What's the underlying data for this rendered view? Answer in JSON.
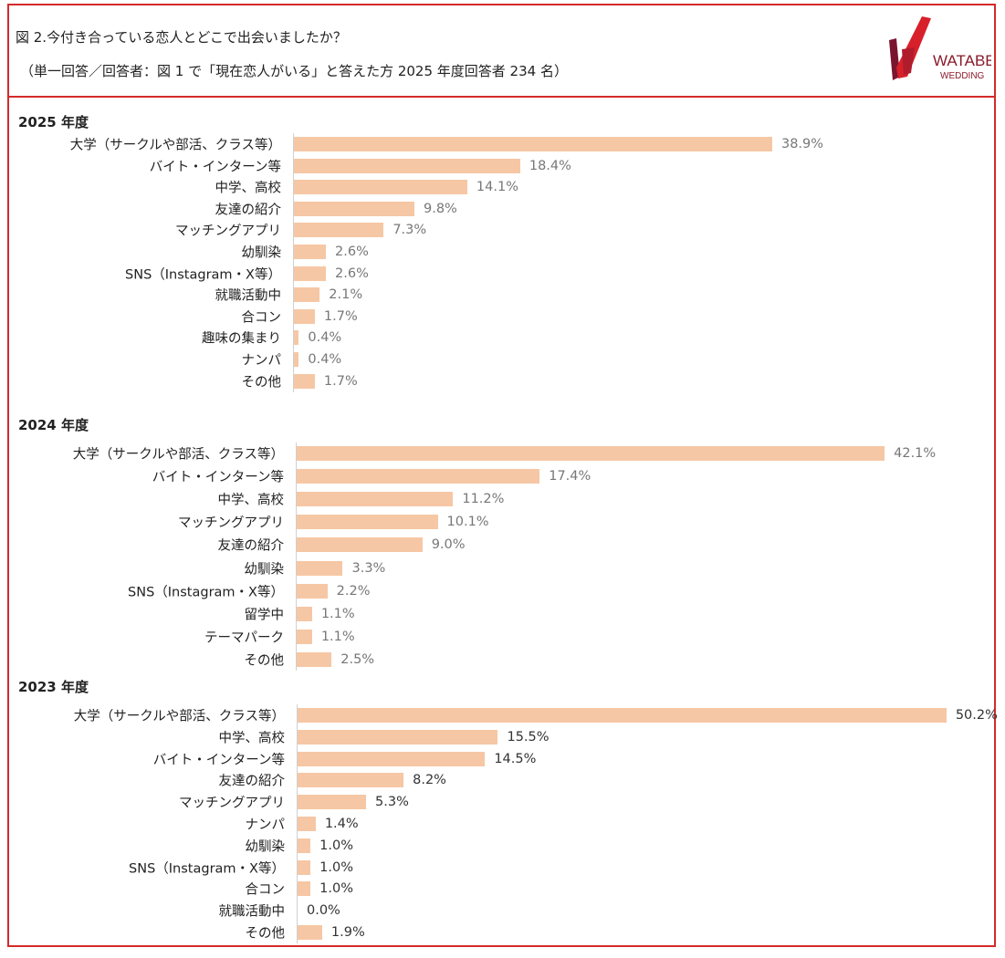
{
  "header": {
    "title": "図 2.今付き合っている恋人とどこで出会いましたか？",
    "subtitle": "（単一回答／回答者：図 1 で「現在恋人がいる」と答えた方 2025 年度回答者 234 名）",
    "logo_text": "WATABE WEDDING"
  },
  "colors": {
    "bar": "#f6c7a4",
    "frame": "#d42a2a"
  },
  "chart_data": [
    {
      "type": "bar",
      "orientation": "horizontal",
      "title": "2025 年度",
      "unit": "%",
      "categories": [
        "大学（サークルや部活、クラス等）",
        "バイト・インターン等",
        "中学、高校",
        "友達の紹介",
        "マッチングアプリ",
        "幼馴染",
        "SNS（Instagram・X等）",
        "就職活動中",
        "合コン",
        "趣味の集まり",
        "ナンパ",
        "その他"
      ],
      "values": [
        38.9,
        18.4,
        14.1,
        9.8,
        7.3,
        2.6,
        2.6,
        2.1,
        1.7,
        0.4,
        0.4,
        1.7
      ],
      "value_labels": [
        "38.9%",
        "18.4%",
        "14.1%",
        "9.8%",
        "7.3%",
        "2.6%",
        "2.6%",
        "2.1%",
        "1.7%",
        "0.4%",
        "0.4%",
        "1.7%"
      ]
    },
    {
      "type": "bar",
      "orientation": "horizontal",
      "title": "2024 年度",
      "unit": "%",
      "categories": [
        "大学（サークルや部活、クラス等）",
        "バイト・インターン等",
        "中学、高校",
        "マッチングアプリ",
        "友達の紹介",
        "幼馴染",
        "SNS（Instagram・X等）",
        "留学中",
        "テーマパーク",
        "その他"
      ],
      "values": [
        42.1,
        17.4,
        11.2,
        10.1,
        9.0,
        3.3,
        2.2,
        1.1,
        1.1,
        2.5
      ],
      "value_labels": [
        "42.1%",
        "17.4%",
        "11.2%",
        "10.1%",
        "9.0%",
        "3.3%",
        "2.2%",
        "1.1%",
        "1.1%",
        "2.5%"
      ]
    },
    {
      "type": "bar",
      "orientation": "horizontal",
      "title": "2023 年度",
      "unit": "%",
      "categories": [
        "大学（サークルや部活、クラス等）",
        "中学、高校",
        "バイト・インターン等",
        "友達の紹介",
        "マッチングアプリ",
        "ナンパ",
        "幼馴染",
        "SNS（Instagram・X等）",
        "合コン",
        "就職活動中",
        "その他"
      ],
      "values": [
        50.2,
        15.5,
        14.5,
        8.2,
        5.3,
        1.4,
        1.0,
        1.0,
        1.0,
        0.0,
        1.9
      ],
      "value_labels": [
        "50.2%",
        "15.5%",
        "14.5%",
        "8.2%",
        "5.3%",
        "1.4%",
        "1.0%",
        "1.0%",
        "1.0%",
        "0.0%",
        "1.9%"
      ]
    }
  ]
}
